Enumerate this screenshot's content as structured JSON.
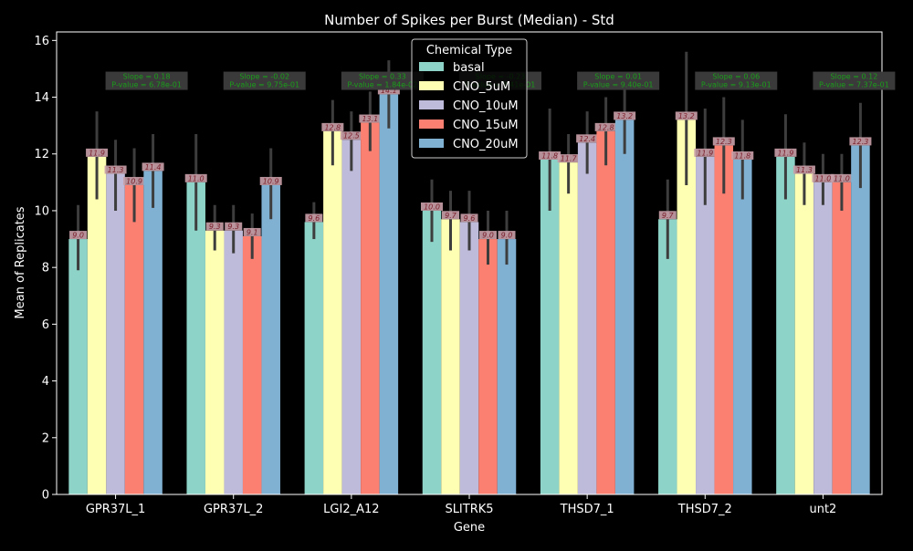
{
  "chart_data": {
    "type": "bar",
    "title": "Number of Spikes per Burst (Median) - Std",
    "xlabel": "Gene",
    "ylabel": "Mean of Replicates",
    "ylim": [
      0,
      16.3
    ],
    "yticks": [
      0,
      2,
      4,
      6,
      8,
      10,
      12,
      14,
      16
    ],
    "grid": false,
    "legend": {
      "title": "Chemical Type",
      "placement": "top-center"
    },
    "categories": [
      "GPR37L_1",
      "GPR37L_2",
      "LGI2_A12",
      "SLITRK5",
      "THSD7_1",
      "THSD7_2",
      "unt2"
    ],
    "series": [
      {
        "name": "basal",
        "color": "#8dd3c7",
        "values": [
          9.0,
          11.0,
          9.6,
          10.0,
          11.8,
          9.7,
          11.9
        ],
        "err_low": [
          7.9,
          9.3,
          9.0,
          8.9,
          10.0,
          8.3,
          10.4
        ],
        "err_high": [
          10.2,
          12.7,
          10.3,
          11.1,
          13.6,
          11.1,
          13.4
        ]
      },
      {
        "name": "CNO_5uM",
        "color": "#ffffb3",
        "values": [
          11.9,
          9.3,
          12.8,
          9.7,
          11.7,
          13.2,
          11.3
        ],
        "err_low": [
          10.4,
          8.6,
          11.6,
          8.6,
          10.6,
          10.9,
          10.2
        ],
        "err_high": [
          13.5,
          10.2,
          13.9,
          10.7,
          12.7,
          15.6,
          12.4
        ]
      },
      {
        "name": "CNO_10uM",
        "color": "#bebada",
        "values": [
          11.3,
          9.3,
          12.5,
          9.6,
          12.4,
          11.9,
          11.0
        ],
        "err_low": [
          10.0,
          8.5,
          11.4,
          8.6,
          11.3,
          10.2,
          10.2
        ],
        "err_high": [
          12.5,
          10.2,
          13.5,
          10.7,
          13.5,
          13.6,
          12.0
        ]
      },
      {
        "name": "CNO_15uM",
        "color": "#fb8072",
        "values": [
          10.9,
          9.1,
          13.1,
          9.0,
          12.8,
          12.3,
          11.0
        ],
        "err_low": [
          9.6,
          8.3,
          12.1,
          8.1,
          11.6,
          10.6,
          10.0
        ],
        "err_high": [
          12.2,
          9.9,
          14.2,
          10.0,
          14.0,
          14.0,
          12.0
        ]
      },
      {
        "name": "CNO_20uM",
        "color": "#80b1d3",
        "values": [
          11.4,
          10.9,
          14.1,
          9.0,
          13.2,
          11.8,
          12.3
        ],
        "err_low": [
          10.1,
          9.7,
          12.9,
          8.1,
          12.0,
          10.4,
          10.8
        ],
        "err_high": [
          12.7,
          12.2,
          15.3,
          10.0,
          14.4,
          13.2,
          13.8
        ]
      }
    ],
    "data_labels": [
      [
        "9.0",
        "11.0",
        "9.6",
        "10.0",
        "11.8",
        "9.7",
        "11.9"
      ],
      [
        "11.9",
        "9.3",
        "12.8",
        "9.7",
        "11.7",
        "13.2",
        "11.3"
      ],
      [
        "11.3",
        "9.3",
        "12.5",
        "9.6",
        "12.4",
        "11.9",
        "11.0"
      ],
      [
        "10.9",
        "9.1",
        "13.1",
        "9.0",
        "12.8",
        "12.3",
        "11.0"
      ],
      [
        "11.4",
        "10.9",
        "14.1",
        "9.0",
        "13.2",
        "11.8",
        "12.3"
      ]
    ],
    "annotations": [
      {
        "line1": "Slope = 0.18",
        "line2": "P-value = 6.78e-01"
      },
      {
        "line1": "Slope = -0.02",
        "line2": "P-value = 9.75e-01"
      },
      {
        "line1": "Slope = 0.33",
        "line2": "P-value = 1.84e-02"
      },
      {
        "line1": "Slope = -0.23",
        "line2": "P-value = 3.41e-01"
      },
      {
        "line1": "Slope = 0.01",
        "line2": "P-value = 9.40e-01"
      },
      {
        "line1": "Slope = 0.06",
        "line2": "P-value = 9.13e-01"
      },
      {
        "line1": "Slope = 0.12",
        "line2": "P-value = 7.37e-01"
      }
    ],
    "annotation_text_color": "#1a9e1a",
    "annotation_box_color": "#3a3a3a",
    "label_box_color": "#c9a0a8"
  }
}
